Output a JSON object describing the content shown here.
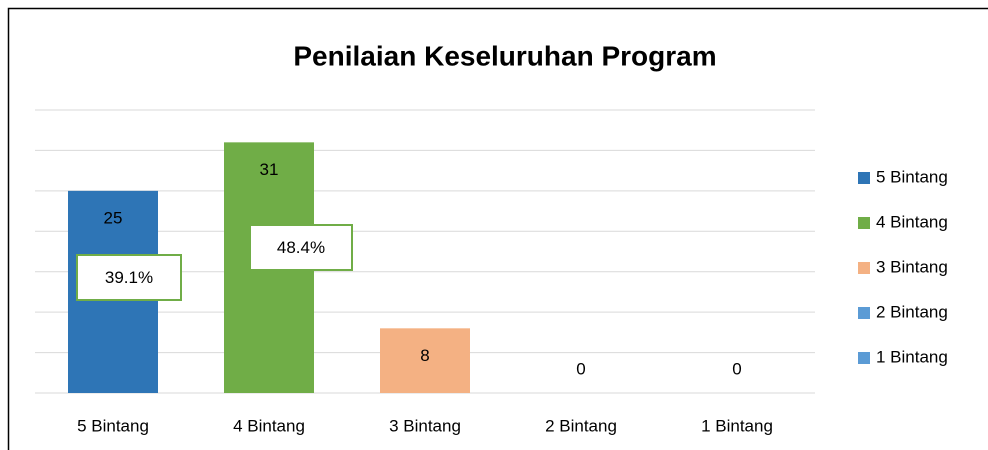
{
  "chart_data": {
    "type": "bar",
    "title": "Penilaian Keseluruhan Program",
    "categories": [
      "5 Bintang",
      "4 Bintang",
      "3 Bintang",
      "2 Bintang",
      "1 Bintang"
    ],
    "values": [
      25,
      31,
      8,
      0,
      0
    ],
    "colors": [
      "#2e75b6",
      "#70ad47",
      "#f4b183",
      "#5b9bd5",
      "#5b9bd5"
    ],
    "annotations": [
      "39.1%",
      "48.4%"
    ],
    "ylim": [
      0,
      35
    ],
    "yticks": [
      0,
      5,
      10,
      15,
      20,
      25,
      30,
      35
    ],
    "grid": true,
    "legend": "right"
  }
}
